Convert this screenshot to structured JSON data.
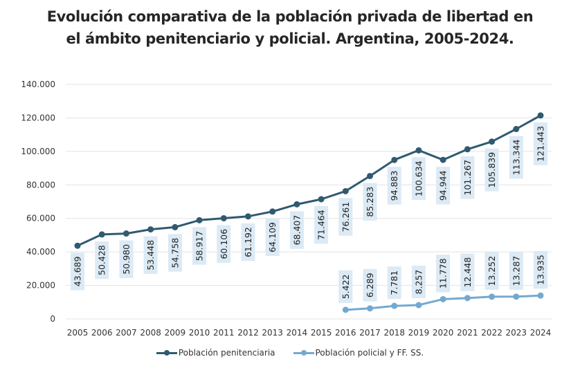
{
  "chart_data": {
    "type": "line",
    "title": [
      "Evolución comparativa de la población privada de libertad en",
      "el ámbito penitenciario y policial. Argentina, 2005-2024."
    ],
    "xlabel": "",
    "ylabel": "",
    "x": [
      "2005",
      "2006",
      "2007",
      "2008",
      "2009",
      "2010",
      "2011",
      "2012",
      "2013",
      "2014",
      "2015",
      "2016",
      "2017",
      "2018",
      "2019",
      "2020",
      "2021",
      "2022",
      "2023",
      "2024"
    ],
    "ylim": [
      0,
      140000
    ],
    "yticks": [
      0,
      20000,
      40000,
      60000,
      80000,
      100000,
      120000,
      140000
    ],
    "ytick_labels": [
      "0",
      "20.000",
      "40.000",
      "60.000",
      "80.000",
      "100.000",
      "120.000",
      "140.000"
    ],
    "grid": true,
    "legend_position": "bottom",
    "series": [
      {
        "name": "Población penitenciaria",
        "color": "#2f5a70",
        "values": [
          43689,
          50428,
          50980,
          53448,
          54758,
          58917,
          60106,
          61192,
          64109,
          68407,
          71464,
          76261,
          85283,
          94883,
          100634,
          94944,
          101267,
          105839,
          113344,
          121443
        ],
        "labels": [
          "43.689",
          "50.428",
          "50.980",
          "53.448",
          "54.758",
          "58.917",
          "60.106",
          "61.192",
          "64.109",
          "68.407",
          "71.464",
          "76.261",
          "85.283",
          "94.883",
          "100.634",
          "94.944",
          "101.267",
          "105.839",
          "113.344",
          "121.443"
        ]
      },
      {
        "name": "Población policial y FF. SS.",
        "color": "#74a9cf",
        "values": [
          null,
          null,
          null,
          null,
          null,
          null,
          null,
          null,
          null,
          null,
          null,
          5422,
          6289,
          7781,
          8257,
          11778,
          12448,
          13252,
          13287,
          13935
        ],
        "labels": [
          null,
          null,
          null,
          null,
          null,
          null,
          null,
          null,
          null,
          null,
          null,
          "5.422",
          "6.289",
          "7.781",
          "8.257",
          "11.778",
          "12.448",
          "13.252",
          "13.287",
          "13.935"
        ]
      }
    ],
    "label_box_color": "#dbeaf5",
    "grid_color": "#e3e3e3"
  }
}
